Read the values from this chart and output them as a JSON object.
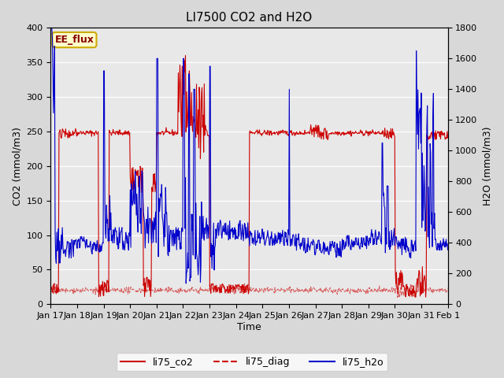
{
  "title": "LI7500 CO2 and H2O",
  "xlabel": "Time",
  "ylabel_left": "CO2 (mmol/m3)",
  "ylabel_right": "H2O (mmol/m3)",
  "ylim_left": [
    0,
    400
  ],
  "ylim_right": [
    0,
    1800
  ],
  "plot_bg_color": "#e8e8e8",
  "fig_bg_color": "#d8d8d8",
  "annotation_text": "EE_flux",
  "annotation_edge_color": "#ccaa00",
  "annotation_bg": "#ffffcc",
  "annotation_text_color": "#880000",
  "xtick_labels": [
    "Jan 17",
    "Jan 18",
    "Jan 19",
    "Jan 20",
    "Jan 21",
    "Jan 22",
    "Jan 23",
    "Jan 24",
    "Jan 25",
    "Jan 26",
    "Jan 27",
    "Jan 28",
    "Jan 29",
    "Jan 30",
    "Jan 31",
    "Feb 1"
  ],
  "yticks_left": [
    0,
    50,
    100,
    150,
    200,
    250,
    300,
    350,
    400
  ],
  "yticks_right": [
    0,
    200,
    400,
    600,
    800,
    1000,
    1200,
    1400,
    1600,
    1800
  ],
  "co2_color": "#cc0000",
  "diag_color": "#cc0000",
  "h2o_color": "#0000cc",
  "n_days": 15,
  "ppd": 48,
  "seed": 42
}
